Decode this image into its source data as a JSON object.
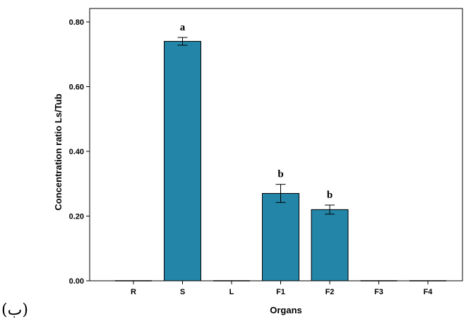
{
  "chart_data": {
    "type": "bar",
    "categories": [
      "R",
      "S",
      "L",
      "F1",
      "F2",
      "F3",
      "F4"
    ],
    "values": [
      0.0,
      0.74,
      0.0,
      0.27,
      0.22,
      0.0,
      0.0
    ],
    "errors": [
      0.0,
      0.012,
      0.0,
      0.028,
      0.014,
      0.0,
      0.0
    ],
    "significance": [
      "",
      "a",
      "",
      "b",
      "b",
      "",
      ""
    ],
    "xlabel": "Organs",
    "ylabel": "Concentration ratio Ls/Tub",
    "ylim": [
      0,
      0.8
    ],
    "yticks": [
      "0.00",
      "0.20",
      "0.40",
      "0.60",
      "0.80"
    ],
    "ytick_values": [
      0,
      0.2,
      0.4,
      0.6,
      0.8
    ],
    "grid": false,
    "bar_color": "#2385a7"
  },
  "panel_label": "(ب)"
}
